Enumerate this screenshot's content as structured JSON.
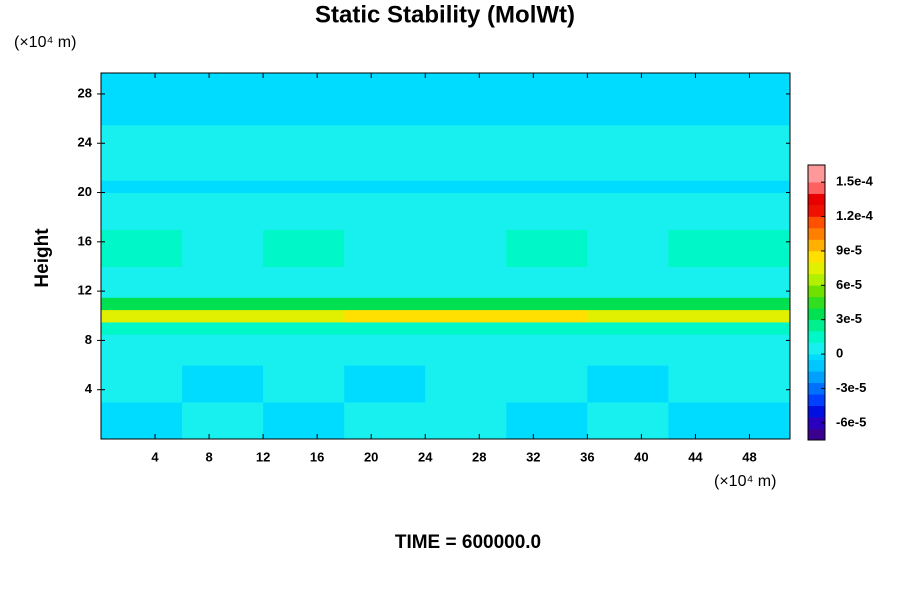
{
  "chart_data": {
    "type": "heatmap",
    "title": "Static Stability (MolWt)",
    "ylabel": "Height",
    "x_unit": "(×10⁴ m)",
    "y_unit": "(×10⁴ m)",
    "footer": "TIME = 600000.0",
    "xlim": [
      0,
      51
    ],
    "ylim": [
      0,
      29.7
    ],
    "xticks": [
      4,
      8,
      12,
      16,
      20,
      24,
      28,
      32,
      36,
      40,
      44,
      48
    ],
    "yticks": [
      4,
      8,
      12,
      16,
      20,
      24,
      28
    ],
    "x_edges": [
      0,
      6,
      12,
      18,
      24,
      30,
      36,
      42,
      51
    ],
    "y_edges": [
      0,
      3,
      6,
      8.5,
      9.5,
      10.5,
      11.5,
      14,
      17,
      20,
      21,
      25.5,
      29.7
    ],
    "z": [
      [
        -5e-06,
        3e-06,
        -5e-06,
        3e-06,
        3e-06,
        -5e-06,
        3e-06,
        -5e-06
      ],
      [
        3e-06,
        -5e-06,
        3e-06,
        -5e-06,
        3e-06,
        3e-06,
        -5e-06,
        3e-06
      ],
      [
        4e-06,
        4e-06,
        4e-06,
        4e-06,
        4e-06,
        4e-06,
        4e-06,
        4e-06
      ],
      [
        1.5e-05,
        1.5e-05,
        1.5e-05,
        1.5e-05,
        1.5e-05,
        1.5e-05,
        1.5e-05,
        1.5e-05
      ],
      [
        7e-05,
        7e-05,
        7.5e-05,
        8.5e-05,
        8.5e-05,
        8e-05,
        7e-05,
        7e-05
      ],
      [
        3.5e-05,
        3.5e-05,
        3.5e-05,
        3.5e-05,
        3.5e-05,
        3.5e-05,
        3.5e-05,
        3.5e-05
      ],
      [
        8e-06,
        8e-06,
        8e-06,
        8e-06,
        8e-06,
        8e-06,
        8e-06,
        8e-06
      ],
      [
        1.2e-05,
        8e-06,
        1.2e-05,
        8e-06,
        8e-06,
        1.2e-05,
        8e-06,
        1.2e-05
      ],
      [
        5e-06,
        5e-06,
        5e-06,
        5e-06,
        5e-06,
        5e-06,
        5e-06,
        5e-06
      ],
      [
        -3e-06,
        -3e-06,
        -3e-06,
        -3e-06,
        -3e-06,
        -3e-06,
        -3e-06,
        -3e-06
      ],
      [
        5e-06,
        5e-06,
        5e-06,
        5e-06,
        5e-06,
        5e-06,
        5e-06,
        5e-06
      ],
      [
        -4e-06,
        -4e-06,
        -4e-06,
        -4e-06,
        -4e-06,
        -4e-06,
        -4e-06,
        -4e-06
      ]
    ],
    "colorbar": {
      "levels": [
        -7.5e-05,
        -6.5e-05,
        -5.5e-05,
        -4.5e-05,
        -3.5e-05,
        -2.5e-05,
        -1.5e-05,
        -5e-06,
        0,
        1e-05,
        2e-05,
        3e-05,
        4e-05,
        5e-05,
        6e-05,
        7e-05,
        8e-05,
        9e-05,
        0.0001,
        0.00011,
        0.00012,
        0.00013,
        0.00014,
        0.00015,
        0.000165
      ],
      "colors": [
        "#3a0090",
        "#2a00c0",
        "#0010e0",
        "#0040ff",
        "#0070ff",
        "#00a0ff",
        "#00c8ff",
        "#00dcff",
        "#18f0f0",
        "#00f8c8",
        "#00f090",
        "#00e050",
        "#30e020",
        "#70e000",
        "#b0f000",
        "#e0f000",
        "#ffe000",
        "#ffb000",
        "#ff8000",
        "#ff5000",
        "#f01000",
        "#e80000",
        "#ff6060",
        "#ff9898"
      ],
      "ticks": [
        {
          "value": -6e-05,
          "label": "-6e-5"
        },
        {
          "value": -3e-05,
          "label": "-3e-5"
        },
        0,
        {
          "value": 3e-05,
          "label": "3e-5"
        },
        {
          "value": 6e-05,
          "label": "6e-5"
        },
        {
          "value": 9e-05,
          "label": "9e-5"
        },
        {
          "value": 0.00012,
          "label": "1.2e-4"
        },
        {
          "value": 0.00015,
          "label": "1.5e-4"
        }
      ]
    }
  }
}
